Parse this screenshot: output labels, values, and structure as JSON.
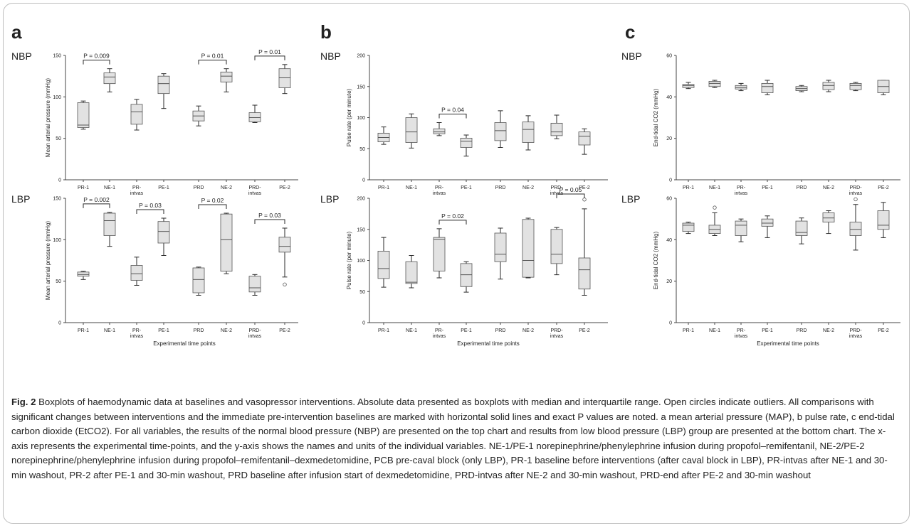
{
  "figure": {
    "caption_label": "Fig. 2",
    "caption_text": "Boxplots of haemodynamic data at baselines and vasopressor interventions. Absolute data presented as boxplots with median and interquartile range. Open circles indicate outliers. All comparisons with significant changes between interventions and the immediate pre-intervention baselines are marked with horizontal solid lines and exact P values are noted. a mean arterial pressure (MAP), b pulse rate, c end-tidal carbon dioxide (EtCO2). For all variables, the results of the normal blood pressure (NBP) are presented on the top chart and results from low blood pressure (LBP) group are presented at the bottom chart. The x-axis represents the experimental time-points, and the y-axis shows the names and units of the individual variables. NE-1/PE-1 norepinephrine/phenylephrine infusion during propofol–remifentanil, NE-2/PE-2 norepinephrine/phenylephrine infusion during propofol–remifentanil–dexmedetomidine, PCB pre-caval block (only LBP), PR-1 baseline before interventions (after caval block in LBP), PR-intvas after NE-1 and 30-min washout, PR-2 after PE-1 and 30-min washout, PRD baseline after infusion start of dexmedetomidine, PRD-intvas after NE-2 and 30-min washout, PRD-end after PE-2 and 30-min washout"
  },
  "colors": {
    "box_fill": "#e2e2e2",
    "stroke": "#2a2a2a",
    "frame": "#bdbdbd"
  },
  "chart_data": [
    {
      "panel": "a",
      "group": "NBP",
      "type": "boxplot",
      "ylabel": "Mean arterial pressure (mmHg)",
      "xlabel": "",
      "categories": [
        "PR-1",
        "NE-1",
        "PR-intvas",
        "PE-1",
        "PRD",
        "NE-2",
        "PRD-intvas",
        "PE-2"
      ],
      "ylim": [
        0,
        150
      ],
      "yticks": [
        0,
        50,
        100,
        150
      ],
      "boxes": [
        {
          "min": 61,
          "q1": 63,
          "median": 66,
          "q3": 93,
          "max": 95
        },
        {
          "min": 106,
          "q1": 116,
          "median": 124,
          "q3": 129,
          "max": 134
        },
        {
          "min": 60,
          "q1": 67,
          "median": 82,
          "q3": 91,
          "max": 97
        },
        {
          "min": 86,
          "q1": 104,
          "median": 116,
          "q3": 125,
          "max": 128
        },
        {
          "min": 65,
          "q1": 71,
          "median": 77,
          "q3": 83,
          "max": 89
        },
        {
          "min": 106,
          "q1": 118,
          "median": 125,
          "q3": 130,
          "max": 134
        },
        {
          "min": 69,
          "q1": 70,
          "median": 75,
          "q3": 81,
          "max": 90
        },
        {
          "min": 104,
          "q1": 111,
          "median": 123,
          "q3": 134,
          "max": 139
        }
      ],
      "outliers": [],
      "comparisons": [
        {
          "from": "PR-1",
          "to": "NE-1",
          "label": "P = 0.009"
        },
        {
          "from": "PRD",
          "to": "NE-2",
          "label": "P = 0.01"
        },
        {
          "from": "PRD-intvas",
          "to": "PE-2",
          "label": "P = 0.01"
        }
      ]
    },
    {
      "panel": "a",
      "group": "LBP",
      "type": "boxplot",
      "ylabel": "Mean arterial pressure (mmHg)",
      "xlabel": "Experimental time points",
      "categories": [
        "PR-1",
        "NE-1",
        "PR-intvas",
        "PE-1",
        "PRD",
        "NE-2",
        "PRD-intvas",
        "PE-2"
      ],
      "ylim": [
        0,
        150
      ],
      "yticks": [
        0,
        50,
        100,
        150
      ],
      "boxes": [
        {
          "min": 52,
          "q1": 56,
          "median": 58,
          "q3": 61,
          "max": 62
        },
        {
          "min": 92,
          "q1": 105,
          "median": 123,
          "q3": 132,
          "max": 133
        },
        {
          "min": 45,
          "q1": 51,
          "median": 59,
          "q3": 69,
          "max": 79
        },
        {
          "min": 81,
          "q1": 96,
          "median": 110,
          "q3": 122,
          "max": 126
        },
        {
          "min": 33,
          "q1": 36,
          "median": 52,
          "q3": 66,
          "max": 67
        },
        {
          "min": 59,
          "q1": 62,
          "median": 100,
          "q3": 131,
          "max": 132
        },
        {
          "min": 33,
          "q1": 37,
          "median": 42,
          "q3": 56,
          "max": 58
        },
        {
          "min": 55,
          "q1": 85,
          "median": 92,
          "q3": 103,
          "max": 114
        }
      ],
      "outliers": [
        {
          "category": "PE-2",
          "value": 46
        }
      ],
      "comparisons": [
        {
          "from": "PR-1",
          "to": "NE-1",
          "label": "P = 0.002"
        },
        {
          "from": "PR-intvas",
          "to": "PE-1",
          "label": "P = 0.03"
        },
        {
          "from": "PRD",
          "to": "NE-2",
          "label": "P = 0.02"
        },
        {
          "from": "PRD-intvas",
          "to": "PE-2",
          "label": "P = 0.03"
        }
      ]
    },
    {
      "panel": "b",
      "group": "NBP",
      "type": "boxplot",
      "ylabel": "Pulse rate (per minute)",
      "xlabel": "",
      "categories": [
        "PR-1",
        "NE-1",
        "PR-intvas",
        "PE-1",
        "PRD",
        "NE-2",
        "PRD-intvas",
        "PE-2"
      ],
      "ylim": [
        0,
        200
      ],
      "yticks": [
        0,
        50,
        100,
        150,
        200
      ],
      "boxes": [
        {
          "min": 57,
          "q1": 61,
          "median": 68,
          "q3": 75,
          "max": 85
        },
        {
          "min": 51,
          "q1": 60,
          "median": 77,
          "q3": 100,
          "max": 106
        },
        {
          "min": 71,
          "q1": 74,
          "median": 77,
          "q3": 82,
          "max": 92
        },
        {
          "min": 38,
          "q1": 52,
          "median": 62,
          "q3": 67,
          "max": 72
        },
        {
          "min": 52,
          "q1": 63,
          "median": 79,
          "q3": 92,
          "max": 111
        },
        {
          "min": 48,
          "q1": 60,
          "median": 81,
          "q3": 93,
          "max": 103
        },
        {
          "min": 66,
          "q1": 71,
          "median": 77,
          "q3": 91,
          "max": 104
        },
        {
          "min": 41,
          "q1": 56,
          "median": 70,
          "q3": 77,
          "max": 82
        }
      ],
      "outliers": [],
      "comparisons": [
        {
          "from": "PR-intvas",
          "to": "PE-1",
          "label": "P = 0.04"
        }
      ]
    },
    {
      "panel": "b",
      "group": "LBP",
      "type": "boxplot",
      "ylabel": "Pulse rate (per minute)",
      "xlabel": "Experimental time points",
      "categories": [
        "PR-1",
        "NE-1",
        "PR-intvas",
        "PE-1",
        "PRD",
        "NE-2",
        "PRD-intvas",
        "PE-2"
      ],
      "ylim": [
        0,
        200
      ],
      "yticks": [
        0,
        50,
        100,
        150,
        200
      ],
      "boxes": [
        {
          "min": 57,
          "q1": 71,
          "median": 87,
          "q3": 115,
          "max": 137
        },
        {
          "min": 56,
          "q1": 63,
          "median": 65,
          "q3": 98,
          "max": 108
        },
        {
          "min": 72,
          "q1": 83,
          "median": 134,
          "q3": 137,
          "max": 151
        },
        {
          "min": 49,
          "q1": 58,
          "median": 77,
          "q3": 95,
          "max": 98
        },
        {
          "min": 70,
          "q1": 98,
          "median": 110,
          "q3": 144,
          "max": 152
        },
        {
          "min": 72,
          "q1": 73,
          "median": 100,
          "q3": 166,
          "max": 168
        },
        {
          "min": 77,
          "q1": 95,
          "median": 110,
          "q3": 150,
          "max": 153
        },
        {
          "min": 44,
          "q1": 54,
          "median": 85,
          "q3": 104,
          "max": 183
        }
      ],
      "outliers": [
        {
          "category": "PE-2",
          "value": 198
        }
      ],
      "comparisons": [
        {
          "from": "PR-intvas",
          "to": "PE-1",
          "label": "P = 0.02"
        },
        {
          "from": "PRD-intvas",
          "to": "PE-2",
          "label": "P = 0.05"
        }
      ]
    },
    {
      "panel": "c",
      "group": "NBP",
      "type": "boxplot",
      "ylabel": "End-tidal CO2 (mmHg)",
      "xlabel": "",
      "categories": [
        "PR-1",
        "NE-1",
        "PR-intvas",
        "PE-1",
        "PRD",
        "NE-2",
        "PRD-intvas",
        "PE-2"
      ],
      "ylim": [
        0,
        60
      ],
      "yticks": [
        0,
        20,
        40,
        60
      ],
      "boxes": [
        {
          "min": 44,
          "q1": 44.5,
          "median": 45.5,
          "q3": 46,
          "max": 47
        },
        {
          "min": 44.5,
          "q1": 45,
          "median": 46.5,
          "q3": 47.5,
          "max": 48
        },
        {
          "min": 43,
          "q1": 43.8,
          "median": 44.5,
          "q3": 45.5,
          "max": 46.5
        },
        {
          "min": 41,
          "q1": 42,
          "median": 45,
          "q3": 46.5,
          "max": 48
        },
        {
          "min": 42.5,
          "q1": 43,
          "median": 44,
          "q3": 45,
          "max": 45.5
        },
        {
          "min": 42.5,
          "q1": 43.5,
          "median": 45.5,
          "q3": 47,
          "max": 48
        },
        {
          "min": 43,
          "q1": 43.5,
          "median": 45.5,
          "q3": 46.5,
          "max": 47
        },
        {
          "min": 41,
          "q1": 42,
          "median": 45,
          "q3": 48,
          "max": 48
        }
      ],
      "outliers": [],
      "comparisons": []
    },
    {
      "panel": "c",
      "group": "LBP",
      "type": "boxplot",
      "ylabel": "End-tidal CO2 (mmHg)",
      "xlabel": "Experimental time points",
      "categories": [
        "PR-1",
        "NE-1",
        "PR-intvas",
        "PE-1",
        "PRD",
        "NE-2",
        "PRD-intvas",
        "PE-2"
      ],
      "ylim": [
        0,
        60
      ],
      "yticks": [
        0,
        20,
        40,
        60
      ],
      "boxes": [
        {
          "min": 43,
          "q1": 44,
          "median": 47,
          "q3": 48,
          "max": 48.5
        },
        {
          "min": 42,
          "q1": 43,
          "median": 45,
          "q3": 47,
          "max": 53
        },
        {
          "min": 39,
          "q1": 42,
          "median": 47,
          "q3": 49,
          "max": 50
        },
        {
          "min": 41,
          "q1": 46.5,
          "median": 48,
          "q3": 50,
          "max": 51.5
        },
        {
          "min": 38,
          "q1": 42,
          "median": 43.5,
          "q3": 49,
          "max": 50.5
        },
        {
          "min": 43,
          "q1": 48.5,
          "median": 50.5,
          "q3": 53,
          "max": 54
        },
        {
          "min": 35,
          "q1": 42,
          "median": 45,
          "q3": 48.5,
          "max": 57
        },
        {
          "min": 41,
          "q1": 45,
          "median": 47,
          "q3": 54,
          "max": 58
        }
      ],
      "outliers": [
        {
          "category": "NE-1",
          "value": 55.5
        },
        {
          "category": "PRD-intvas",
          "value": 59.5
        }
      ],
      "comparisons": []
    }
  ]
}
